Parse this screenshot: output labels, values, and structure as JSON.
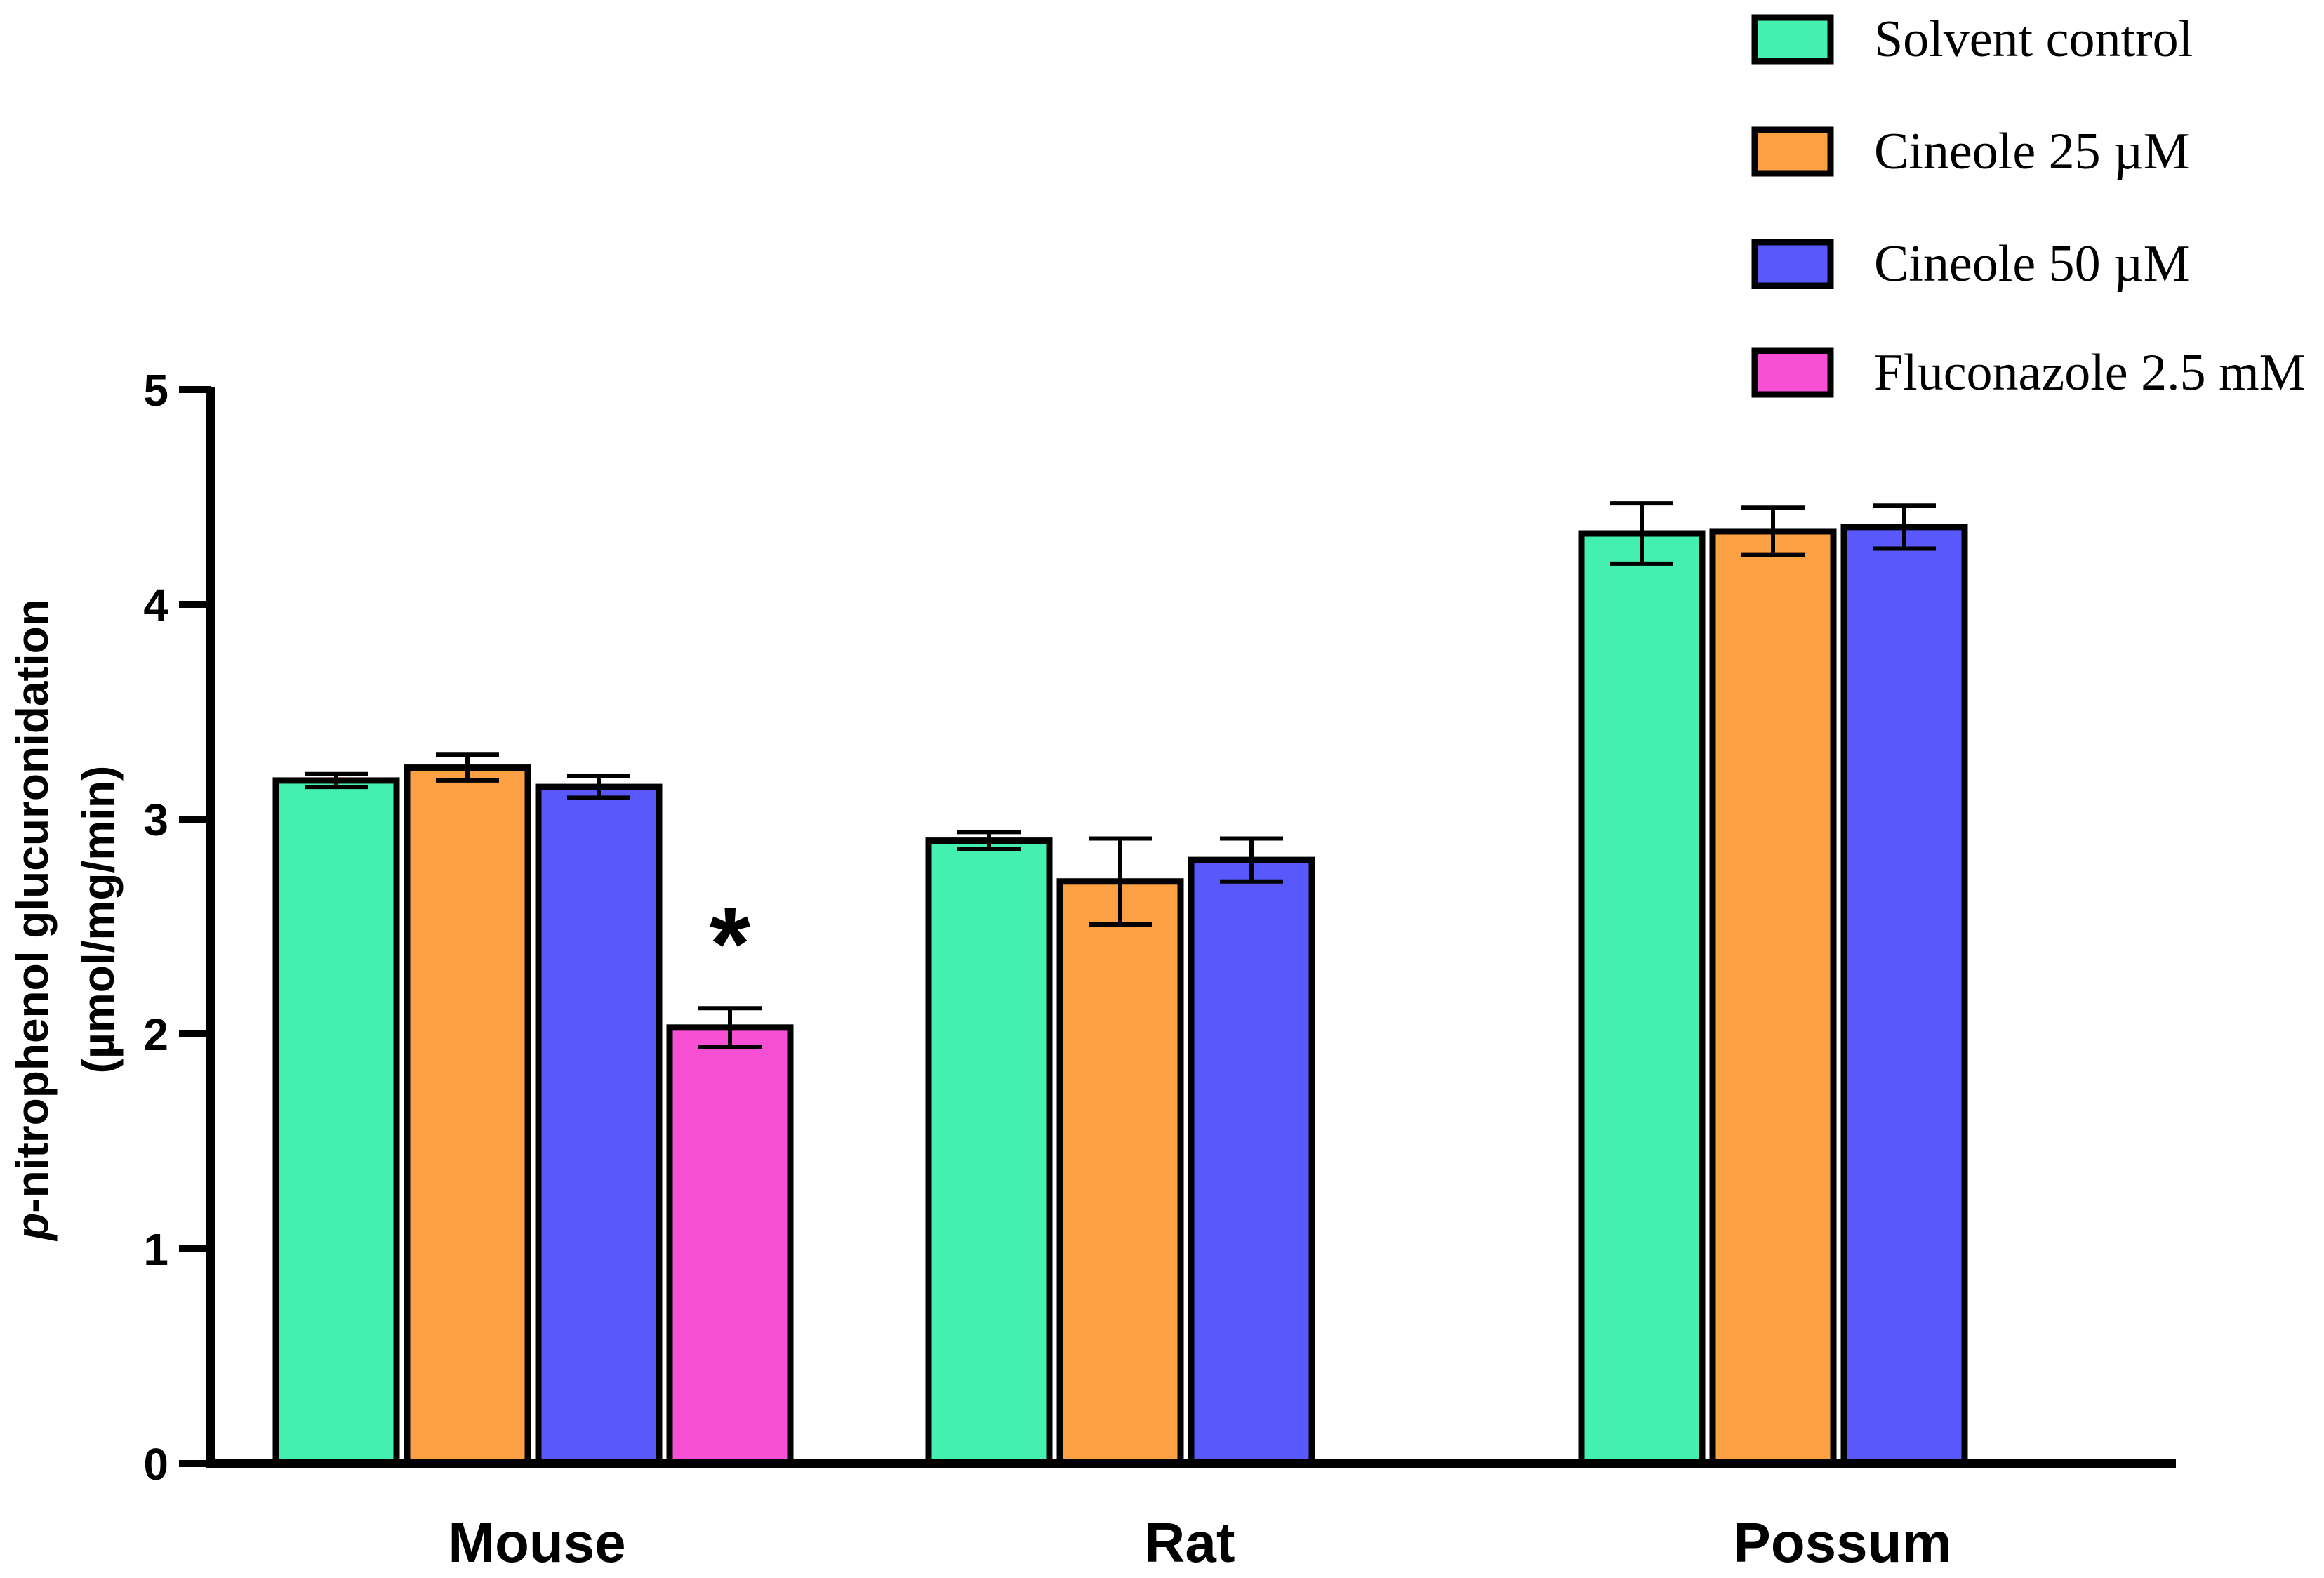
{
  "chart_data": {
    "type": "bar",
    "title": "",
    "xlabel": "",
    "ylabel_italic": "p",
    "ylabel_rest": "-nitrophenol glucuronidation",
    "ylabel_units": "(µmol/mg/min)",
    "ylim": [
      0,
      5
    ],
    "yticks": [
      0,
      1,
      2,
      3,
      4,
      5
    ],
    "categories": [
      "Mouse",
      "Rat",
      "Possum"
    ],
    "legend_position": "top-right",
    "series": [
      {
        "name": "Solvent control",
        "color": "#44f0b0",
        "values": [
          3.18,
          2.9,
          4.33
        ],
        "errors": [
          0.03,
          0.04,
          0.14
        ]
      },
      {
        "name": "Cineole 25 µM",
        "color": "#fca044",
        "values": [
          3.24,
          2.71,
          4.34
        ],
        "errors": [
          0.06,
          0.2,
          0.11
        ]
      },
      {
        "name": "Cineole 50 µM",
        "color": "#5858fc",
        "values": [
          3.15,
          2.81,
          4.36
        ],
        "errors": [
          0.05,
          0.1,
          0.1
        ]
      },
      {
        "name": "Fluconazole 2.5 mM",
        "color": "#f850d4",
        "values": [
          2.03,
          null,
          null
        ],
        "errors": [
          0.09,
          null,
          null
        ]
      }
    ],
    "annotations": [
      {
        "text": "*",
        "category": "Mouse",
        "series": "Fluconazole 2.5 mM"
      }
    ]
  }
}
